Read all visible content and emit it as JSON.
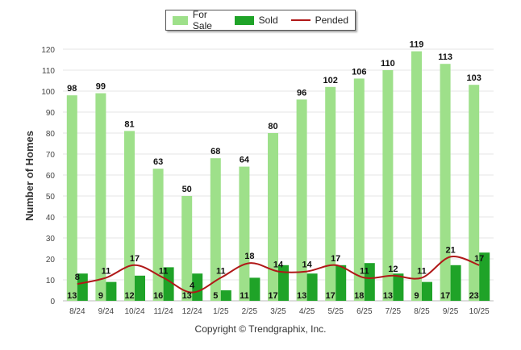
{
  "chart_data": {
    "type": "bar",
    "title": "",
    "xlabel": "",
    "ylabel": "Number of Homes",
    "ylim": [
      0,
      120
    ],
    "yticks": [
      0,
      10,
      20,
      30,
      40,
      50,
      60,
      70,
      80,
      90,
      100,
      110,
      120
    ],
    "grid": true,
    "legend_position": "top-center",
    "categories": [
      "8/24",
      "9/24",
      "10/24",
      "11/24",
      "12/24",
      "1/25",
      "2/25",
      "3/25",
      "4/25",
      "5/25",
      "6/25",
      "7/25",
      "8/25",
      "9/25",
      "10/25"
    ],
    "series": [
      {
        "name": "For Sale",
        "kind": "bar",
        "color": "#9ee08a",
        "values": [
          98,
          99,
          81,
          63,
          50,
          68,
          64,
          80,
          96,
          102,
          106,
          110,
          119,
          113,
          103
        ]
      },
      {
        "name": "Sold",
        "kind": "bar",
        "color": "#1fa328",
        "values": [
          13,
          9,
          12,
          16,
          13,
          5,
          11,
          17,
          13,
          17,
          18,
          13,
          9,
          17,
          23
        ]
      },
      {
        "name": "Pended",
        "kind": "line",
        "color": "#b01818",
        "values": [
          8,
          11,
          17,
          11,
          4,
          11,
          18,
          14,
          14,
          17,
          11,
          12,
          11,
          21,
          17
        ]
      }
    ]
  },
  "legend": {
    "for_sale": "For Sale",
    "sold": "Sold",
    "pended": "Pended"
  },
  "footer": "Copyright © Trendgraphix, Inc."
}
